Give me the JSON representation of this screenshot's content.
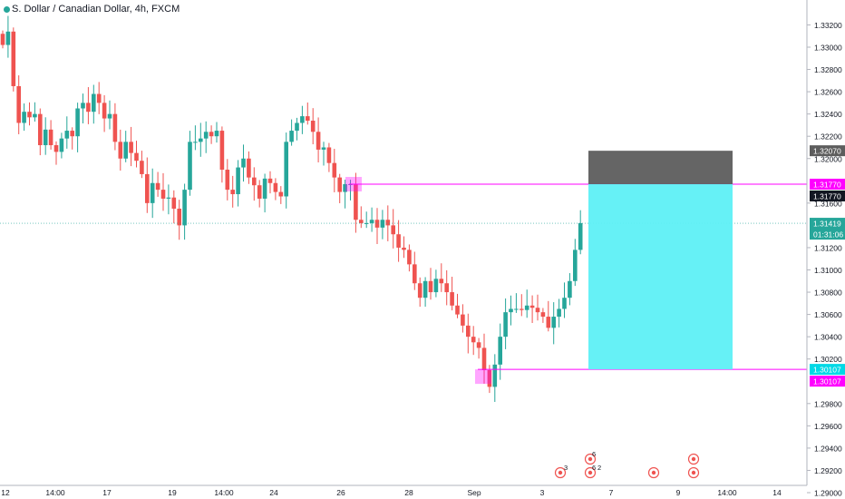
{
  "header": {
    "symbol_title": "S. Dollar / Canadian Dollar, 4h, FXCM"
  },
  "colors": {
    "up": "#26a69a",
    "down": "#ef5350",
    "magenta": "#ff00ff",
    "target_fill": "#5ef0f5",
    "stop_fill": "#5d5d5d",
    "current_line": "#26a69a"
  },
  "chart_data": {
    "type": "candlestick",
    "x_ticks": [
      "12",
      "14:00",
      "17",
      "19",
      "14:00",
      "24",
      "26",
      "28",
      "Sep",
      "3",
      "7",
      "9",
      "14:00",
      "14"
    ],
    "ylim": [
      1.2898,
      1.3322
    ],
    "y_ticks": [
      "1.33200",
      "1.33000",
      "1.32800",
      "1.32600",
      "1.32400",
      "1.32200",
      "1.32000",
      "1.31600",
      "1.31200",
      "1.31000",
      "1.30800",
      "1.30600",
      "1.30400",
      "1.30200",
      "1.29800",
      "1.29600",
      "1.29400",
      "1.29200",
      "1.29000"
    ],
    "price_labels": [
      {
        "value": 1.3207,
        "text": "1.32070",
        "color": "#5d5d5d"
      },
      {
        "value": 1.3177,
        "text": "1.31770",
        "color": "#131722"
      },
      {
        "value": 1.3177,
        "text": "1.31770",
        "color": "#ff00ff"
      },
      {
        "value": 1.31419,
        "text": "1.31419",
        "sub": "01:31:06",
        "color": "#26a69a"
      },
      {
        "value": 1.30107,
        "text": "1.30107",
        "color": "#00d9e6"
      },
      {
        "value": 1.30107,
        "text": "1.30107",
        "color": "#ff00ff"
      }
    ],
    "horizontal_lines": [
      {
        "name": "resistance-line",
        "value": 1.3177,
        "color": "#ff00ff"
      },
      {
        "name": "support-line",
        "value": 1.30107,
        "color": "#ff00ff"
      },
      {
        "name": "current-price-line",
        "value": 1.31419,
        "color": "#26a69a"
      }
    ],
    "position": {
      "entry": 1.3177,
      "stop": 1.3207,
      "target": 1.30107
    },
    "event_badges": [
      "3",
      "6",
      "6",
      "2"
    ],
    "closes": [
      1.3302,
      1.3314,
      1.3265,
      1.3232,
      1.3242,
      1.3237,
      1.324,
      1.3212,
      1.3226,
      1.3212,
      1.3206,
      1.3218,
      1.3225,
      1.322,
      1.3245,
      1.325,
      1.3242,
      1.3258,
      1.325,
      1.3236,
      1.324,
      1.3215,
      1.32,
      1.3215,
      1.3205,
      1.3198,
      1.3186,
      1.316,
      1.3178,
      1.3172,
      1.3164,
      1.3165,
      1.3155,
      1.314,
      1.3172,
      1.3215,
      1.3215,
      1.3218,
      1.3224,
      1.322,
      1.3225,
      1.319,
      1.3172,
      1.3168,
      1.3192,
      1.32,
      1.3183,
      1.3176,
      1.3164,
      1.3182,
      1.3178,
      1.317,
      1.3166,
      1.3215,
      1.3225,
      1.3232,
      1.3238,
      1.3234,
      1.3224,
      1.3208,
      1.321,
      1.3196,
      1.3183,
      1.317,
      1.3177,
      1.3177,
      1.3145,
      1.3142,
      1.3142,
      1.3145,
      1.3138,
      1.3145,
      1.314,
      1.3132,
      1.312,
      1.3118,
      1.3105,
      1.3088,
      1.3075,
      1.309,
      1.308,
      1.3092,
      1.3088,
      1.308,
      1.3068,
      1.306,
      1.305,
      1.304,
      1.3035,
      1.303,
      1.301,
      1.2995,
      1.3015,
      1.304,
      1.3062,
      1.3065,
      1.3065,
      1.3064,
      1.3068,
      1.3066,
      1.3062,
      1.3058,
      1.3048,
      1.3058,
      1.3065,
      1.3075,
      1.309,
      1.3118,
      1.3142
    ]
  }
}
